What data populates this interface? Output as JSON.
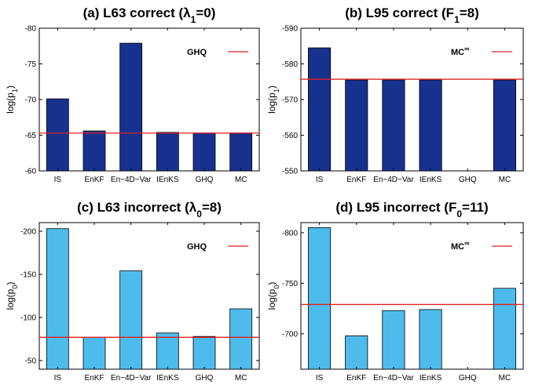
{
  "colors": {
    "dark_bar": "#17318f",
    "light_bar": "#4dbcec",
    "reference_line": "#e02020",
    "axis": "#000000"
  },
  "chart_data": [
    {
      "type": "bar",
      "title": "(a) L63 correct (λ",
      "title_sub": "1",
      "title_tail": "=0)",
      "ylabel": "log(p",
      "ylabel_sub": "1",
      "ylabel_tail": ")",
      "categories": [
        "IS",
        "EnKF",
        "En−4D−Var",
        "IEnKS",
        "GHQ",
        "MC"
      ],
      "values": [
        -70.1,
        -65.6,
        -77.9,
        -65.4,
        -65.3,
        -65.3
      ],
      "bar_color": "dark",
      "ylim": [
        -60,
        -80
      ],
      "yticks": [
        -60,
        -65,
        -70,
        -75,
        -80
      ],
      "ytick_labels": [
        "-60",
        "-65",
        "-70",
        "-75",
        "-80"
      ],
      "reference_line": -65.3,
      "legend": "GHQ",
      "legend_sup": ""
    },
    {
      "type": "bar",
      "title": "(b) L95 correct (F",
      "title_sub": "1",
      "title_tail": "=8)",
      "ylabel": "log(p",
      "ylabel_sub": "1",
      "ylabel_tail": ")",
      "categories": [
        "IS",
        "EnKF",
        "En−4D−Var",
        "IEnKS",
        "GHQ",
        "MC"
      ],
      "values": [
        -584.5,
        -575.5,
        -575.5,
        -575.5,
        null,
        -575.5
      ],
      "bar_color": "dark",
      "ylim": [
        -550,
        -590
      ],
      "yticks": [
        -550,
        -560,
        -570,
        -580,
        -590
      ],
      "ytick_labels": [
        "-550",
        "-560",
        "-570",
        "-580",
        "-590"
      ],
      "reference_line": -575.7,
      "legend": "MC",
      "legend_sup": "∞"
    },
    {
      "type": "bar",
      "title": "(c) L63 incorrect (λ",
      "title_sub": "0",
      "title_tail": "=8)",
      "ylabel": "log(p",
      "ylabel_sub": "0",
      "ylabel_tail": ")",
      "categories": [
        "IS",
        "EnKF",
        "En−4D−Var",
        "IEnKS",
        "GHQ",
        "MC"
      ],
      "values": [
        -203,
        -77,
        -154,
        -82,
        -78,
        -110
      ],
      "bar_color": "light",
      "ylim": [
        -40,
        -210
      ],
      "yticks": [
        -50,
        -100,
        -150,
        -200
      ],
      "ytick_labels": [
        "-50",
        "-100",
        "-150",
        "-200"
      ],
      "reference_line": -77,
      "legend": "GHQ",
      "legend_sup": ""
    },
    {
      "type": "bar",
      "title": "(d) L95 incorrect (F",
      "title_sub": "0",
      "title_tail": "=11)",
      "ylabel": "log(p",
      "ylabel_sub": "0",
      "ylabel_tail": ")",
      "categories": [
        "IS",
        "EnKF",
        "En−4D−Var",
        "IEnKS",
        "GHQ",
        "MC"
      ],
      "values": [
        -805,
        -698,
        -723,
        -724,
        null,
        -745
      ],
      "bar_color": "light",
      "ylim": [
        -665,
        -810
      ],
      "yticks": [
        -700,
        -750,
        -800
      ],
      "ytick_labels": [
        "-700",
        "-750",
        "-800"
      ],
      "reference_line": -729,
      "legend": "MC",
      "legend_sup": "∞"
    }
  ]
}
